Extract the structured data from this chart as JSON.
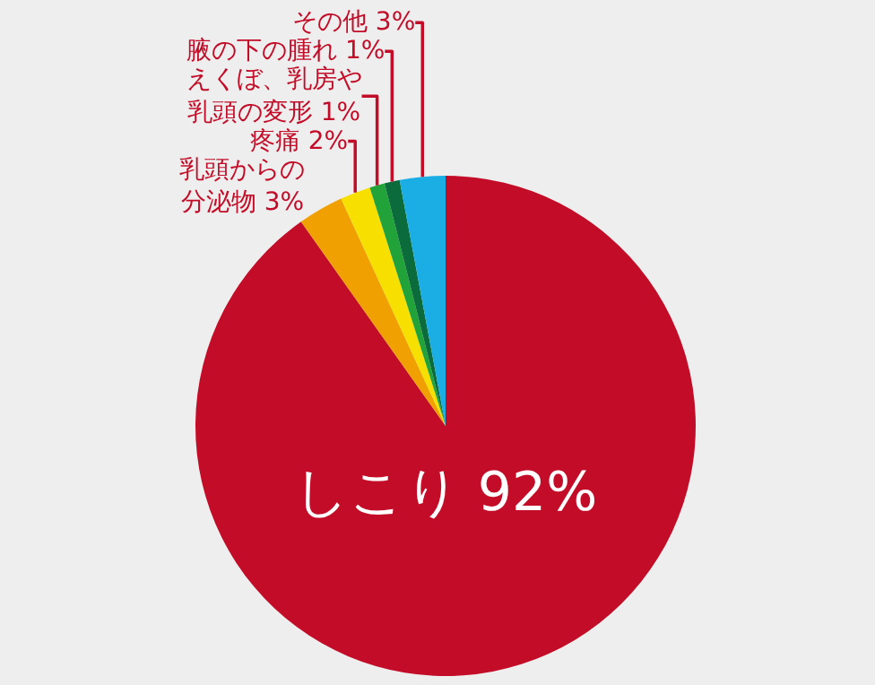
{
  "chart_data": {
    "type": "pie",
    "categories": [
      "しこり",
      "乳頭からの分泌物",
      "疼痛",
      "えくぼ、乳房や乳頭の変形",
      "腋の下の腫れ",
      "その他"
    ],
    "values": [
      92,
      3,
      2,
      1,
      1,
      3
    ],
    "value_labels": [
      "92%",
      "3%",
      "2%",
      "1%",
      "1%",
      "3%"
    ],
    "colors": [
      "#c30d28",
      "#f0a000",
      "#f7e000",
      "#22a33a",
      "#0b6b3a",
      "#1aaee5"
    ],
    "legend": false
  }
}
